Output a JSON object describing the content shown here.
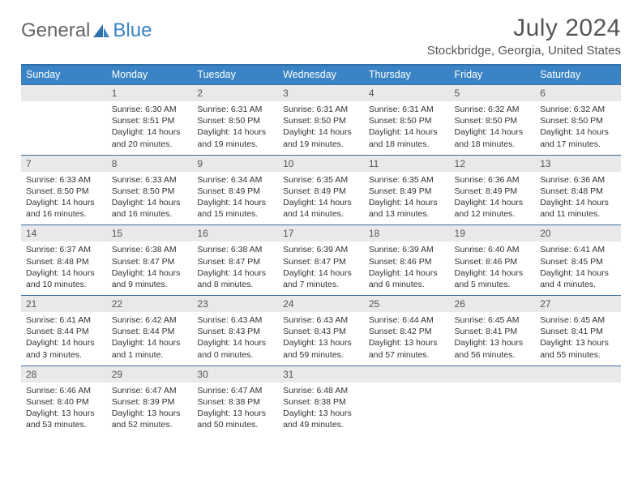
{
  "brand": {
    "part1": "General",
    "part2": "Blue"
  },
  "title": "July 2024",
  "location": "Stockbridge, Georgia, United States",
  "colors": {
    "header_bg": "#3a84c5",
    "header_text": "#ffffff",
    "daynum_bg": "#e9e9e9",
    "border_top": "#2f6fa8",
    "text": "#333333",
    "title_text": "#555555"
  },
  "weekdays": [
    "Sunday",
    "Monday",
    "Tuesday",
    "Wednesday",
    "Thursday",
    "Friday",
    "Saturday"
  ],
  "weeks": [
    {
      "nums": [
        "",
        "1",
        "2",
        "3",
        "4",
        "5",
        "6"
      ],
      "cells": [
        null,
        {
          "sr": "Sunrise: 6:30 AM",
          "ss": "Sunset: 8:51 PM",
          "dl": "Daylight: 14 hours and 20 minutes."
        },
        {
          "sr": "Sunrise: 6:31 AM",
          "ss": "Sunset: 8:50 PM",
          "dl": "Daylight: 14 hours and 19 minutes."
        },
        {
          "sr": "Sunrise: 6:31 AM",
          "ss": "Sunset: 8:50 PM",
          "dl": "Daylight: 14 hours and 19 minutes."
        },
        {
          "sr": "Sunrise: 6:31 AM",
          "ss": "Sunset: 8:50 PM",
          "dl": "Daylight: 14 hours and 18 minutes."
        },
        {
          "sr": "Sunrise: 6:32 AM",
          "ss": "Sunset: 8:50 PM",
          "dl": "Daylight: 14 hours and 18 minutes."
        },
        {
          "sr": "Sunrise: 6:32 AM",
          "ss": "Sunset: 8:50 PM",
          "dl": "Daylight: 14 hours and 17 minutes."
        }
      ]
    },
    {
      "nums": [
        "7",
        "8",
        "9",
        "10",
        "11",
        "12",
        "13"
      ],
      "cells": [
        {
          "sr": "Sunrise: 6:33 AM",
          "ss": "Sunset: 8:50 PM",
          "dl": "Daylight: 14 hours and 16 minutes."
        },
        {
          "sr": "Sunrise: 6:33 AM",
          "ss": "Sunset: 8:50 PM",
          "dl": "Daylight: 14 hours and 16 minutes."
        },
        {
          "sr": "Sunrise: 6:34 AM",
          "ss": "Sunset: 8:49 PM",
          "dl": "Daylight: 14 hours and 15 minutes."
        },
        {
          "sr": "Sunrise: 6:35 AM",
          "ss": "Sunset: 8:49 PM",
          "dl": "Daylight: 14 hours and 14 minutes."
        },
        {
          "sr": "Sunrise: 6:35 AM",
          "ss": "Sunset: 8:49 PM",
          "dl": "Daylight: 14 hours and 13 minutes."
        },
        {
          "sr": "Sunrise: 6:36 AM",
          "ss": "Sunset: 8:49 PM",
          "dl": "Daylight: 14 hours and 12 minutes."
        },
        {
          "sr": "Sunrise: 6:36 AM",
          "ss": "Sunset: 8:48 PM",
          "dl": "Daylight: 14 hours and 11 minutes."
        }
      ]
    },
    {
      "nums": [
        "14",
        "15",
        "16",
        "17",
        "18",
        "19",
        "20"
      ],
      "cells": [
        {
          "sr": "Sunrise: 6:37 AM",
          "ss": "Sunset: 8:48 PM",
          "dl": "Daylight: 14 hours and 10 minutes."
        },
        {
          "sr": "Sunrise: 6:38 AM",
          "ss": "Sunset: 8:47 PM",
          "dl": "Daylight: 14 hours and 9 minutes."
        },
        {
          "sr": "Sunrise: 6:38 AM",
          "ss": "Sunset: 8:47 PM",
          "dl": "Daylight: 14 hours and 8 minutes."
        },
        {
          "sr": "Sunrise: 6:39 AM",
          "ss": "Sunset: 8:47 PM",
          "dl": "Daylight: 14 hours and 7 minutes."
        },
        {
          "sr": "Sunrise: 6:39 AM",
          "ss": "Sunset: 8:46 PM",
          "dl": "Daylight: 14 hours and 6 minutes."
        },
        {
          "sr": "Sunrise: 6:40 AM",
          "ss": "Sunset: 8:46 PM",
          "dl": "Daylight: 14 hours and 5 minutes."
        },
        {
          "sr": "Sunrise: 6:41 AM",
          "ss": "Sunset: 8:45 PM",
          "dl": "Daylight: 14 hours and 4 minutes."
        }
      ]
    },
    {
      "nums": [
        "21",
        "22",
        "23",
        "24",
        "25",
        "26",
        "27"
      ],
      "cells": [
        {
          "sr": "Sunrise: 6:41 AM",
          "ss": "Sunset: 8:44 PM",
          "dl": "Daylight: 14 hours and 3 minutes."
        },
        {
          "sr": "Sunrise: 6:42 AM",
          "ss": "Sunset: 8:44 PM",
          "dl": "Daylight: 14 hours and 1 minute."
        },
        {
          "sr": "Sunrise: 6:43 AM",
          "ss": "Sunset: 8:43 PM",
          "dl": "Daylight: 14 hours and 0 minutes."
        },
        {
          "sr": "Sunrise: 6:43 AM",
          "ss": "Sunset: 8:43 PM",
          "dl": "Daylight: 13 hours and 59 minutes."
        },
        {
          "sr": "Sunrise: 6:44 AM",
          "ss": "Sunset: 8:42 PM",
          "dl": "Daylight: 13 hours and 57 minutes."
        },
        {
          "sr": "Sunrise: 6:45 AM",
          "ss": "Sunset: 8:41 PM",
          "dl": "Daylight: 13 hours and 56 minutes."
        },
        {
          "sr": "Sunrise: 6:45 AM",
          "ss": "Sunset: 8:41 PM",
          "dl": "Daylight: 13 hours and 55 minutes."
        }
      ]
    },
    {
      "nums": [
        "28",
        "29",
        "30",
        "31",
        "",
        "",
        ""
      ],
      "cells": [
        {
          "sr": "Sunrise: 6:46 AM",
          "ss": "Sunset: 8:40 PM",
          "dl": "Daylight: 13 hours and 53 minutes."
        },
        {
          "sr": "Sunrise: 6:47 AM",
          "ss": "Sunset: 8:39 PM",
          "dl": "Daylight: 13 hours and 52 minutes."
        },
        {
          "sr": "Sunrise: 6:47 AM",
          "ss": "Sunset: 8:38 PM",
          "dl": "Daylight: 13 hours and 50 minutes."
        },
        {
          "sr": "Sunrise: 6:48 AM",
          "ss": "Sunset: 8:38 PM",
          "dl": "Daylight: 13 hours and 49 minutes."
        },
        null,
        null,
        null
      ]
    }
  ]
}
